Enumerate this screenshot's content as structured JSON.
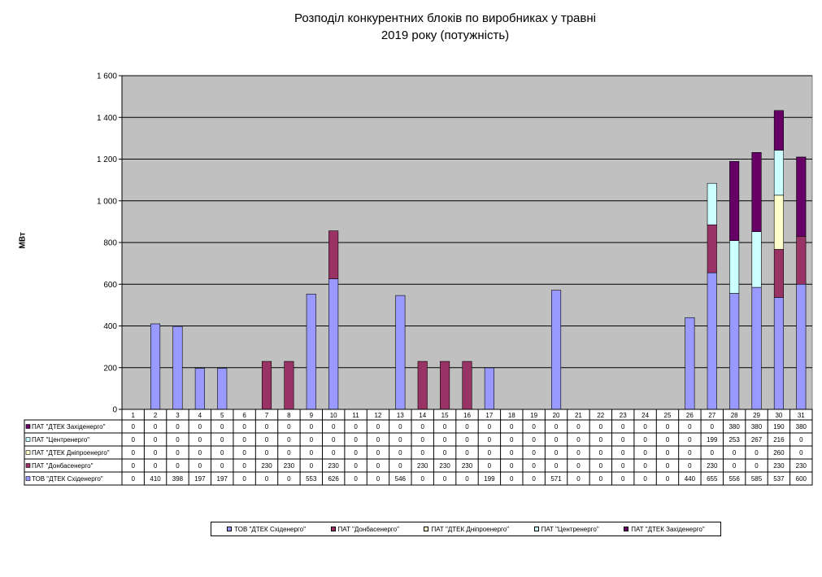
{
  "chart_data": {
    "type": "bar",
    "stacked": true,
    "title": "Розподіл конкурентних  блоків по виробниках  у травні\n2019 року  (потужність)",
    "ylabel": "МВт",
    "ylim": [
      0,
      1600
    ],
    "yticks": [
      "0",
      "200",
      "400",
      "600",
      "800",
      "1 000",
      "1 200",
      "1 400",
      "1 600"
    ],
    "categories": [
      "1",
      "2",
      "3",
      "4",
      "5",
      "6",
      "7",
      "8",
      "9",
      "10",
      "11",
      "12",
      "13",
      "14",
      "15",
      "16",
      "17",
      "18",
      "19",
      "20",
      "21",
      "22",
      "23",
      "24",
      "25",
      "26",
      "27",
      "28",
      "29",
      "30",
      "31"
    ],
    "series": [
      {
        "name": "ТОВ \"ДТЕК Східенерго\"",
        "color": "#9999ff",
        "values": [
          0,
          410,
          398,
          197,
          197,
          0,
          0,
          0,
          553,
          626,
          0,
          0,
          546,
          0,
          0,
          0,
          199,
          0,
          0,
          571,
          0,
          0,
          0,
          0,
          0,
          440,
          655,
          556,
          585,
          537,
          600
        ]
      },
      {
        "name": "ПАТ \"Донбасенерго\"",
        "color": "#993366",
        "values": [
          0,
          0,
          0,
          0,
          0,
          0,
          230,
          230,
          0,
          230,
          0,
          0,
          0,
          230,
          230,
          230,
          0,
          0,
          0,
          0,
          0,
          0,
          0,
          0,
          0,
          0,
          230,
          0,
          0,
          230,
          230
        ]
      },
      {
        "name": "ПАТ \"ДТЕК Дніпроенерго\"",
        "color": "#ffffcc",
        "values": [
          0,
          0,
          0,
          0,
          0,
          0,
          0,
          0,
          0,
          0,
          0,
          0,
          0,
          0,
          0,
          0,
          0,
          0,
          0,
          0,
          0,
          0,
          0,
          0,
          0,
          0,
          0,
          0,
          0,
          260,
          0
        ]
      },
      {
        "name": "ПАТ \"Центренерго\"",
        "color": "#ccffff",
        "values": [
          0,
          0,
          0,
          0,
          0,
          0,
          0,
          0,
          0,
          0,
          0,
          0,
          0,
          0,
          0,
          0,
          0,
          0,
          0,
          0,
          0,
          0,
          0,
          0,
          0,
          0,
          199,
          253,
          267,
          216,
          0
        ]
      },
      {
        "name": "ПАТ \"ДТЕК Західенерго\"",
        "color": "#660066",
        "values": [
          0,
          0,
          0,
          0,
          0,
          0,
          0,
          0,
          0,
          0,
          0,
          0,
          0,
          0,
          0,
          0,
          0,
          0,
          0,
          0,
          0,
          0,
          0,
          0,
          0,
          0,
          0,
          380,
          380,
          190,
          380
        ]
      }
    ],
    "table_row_order": [
      4,
      3,
      2,
      1,
      0
    ],
    "grid": true,
    "plot_background": "#c0c0c0",
    "legend_position": "bottom"
  }
}
